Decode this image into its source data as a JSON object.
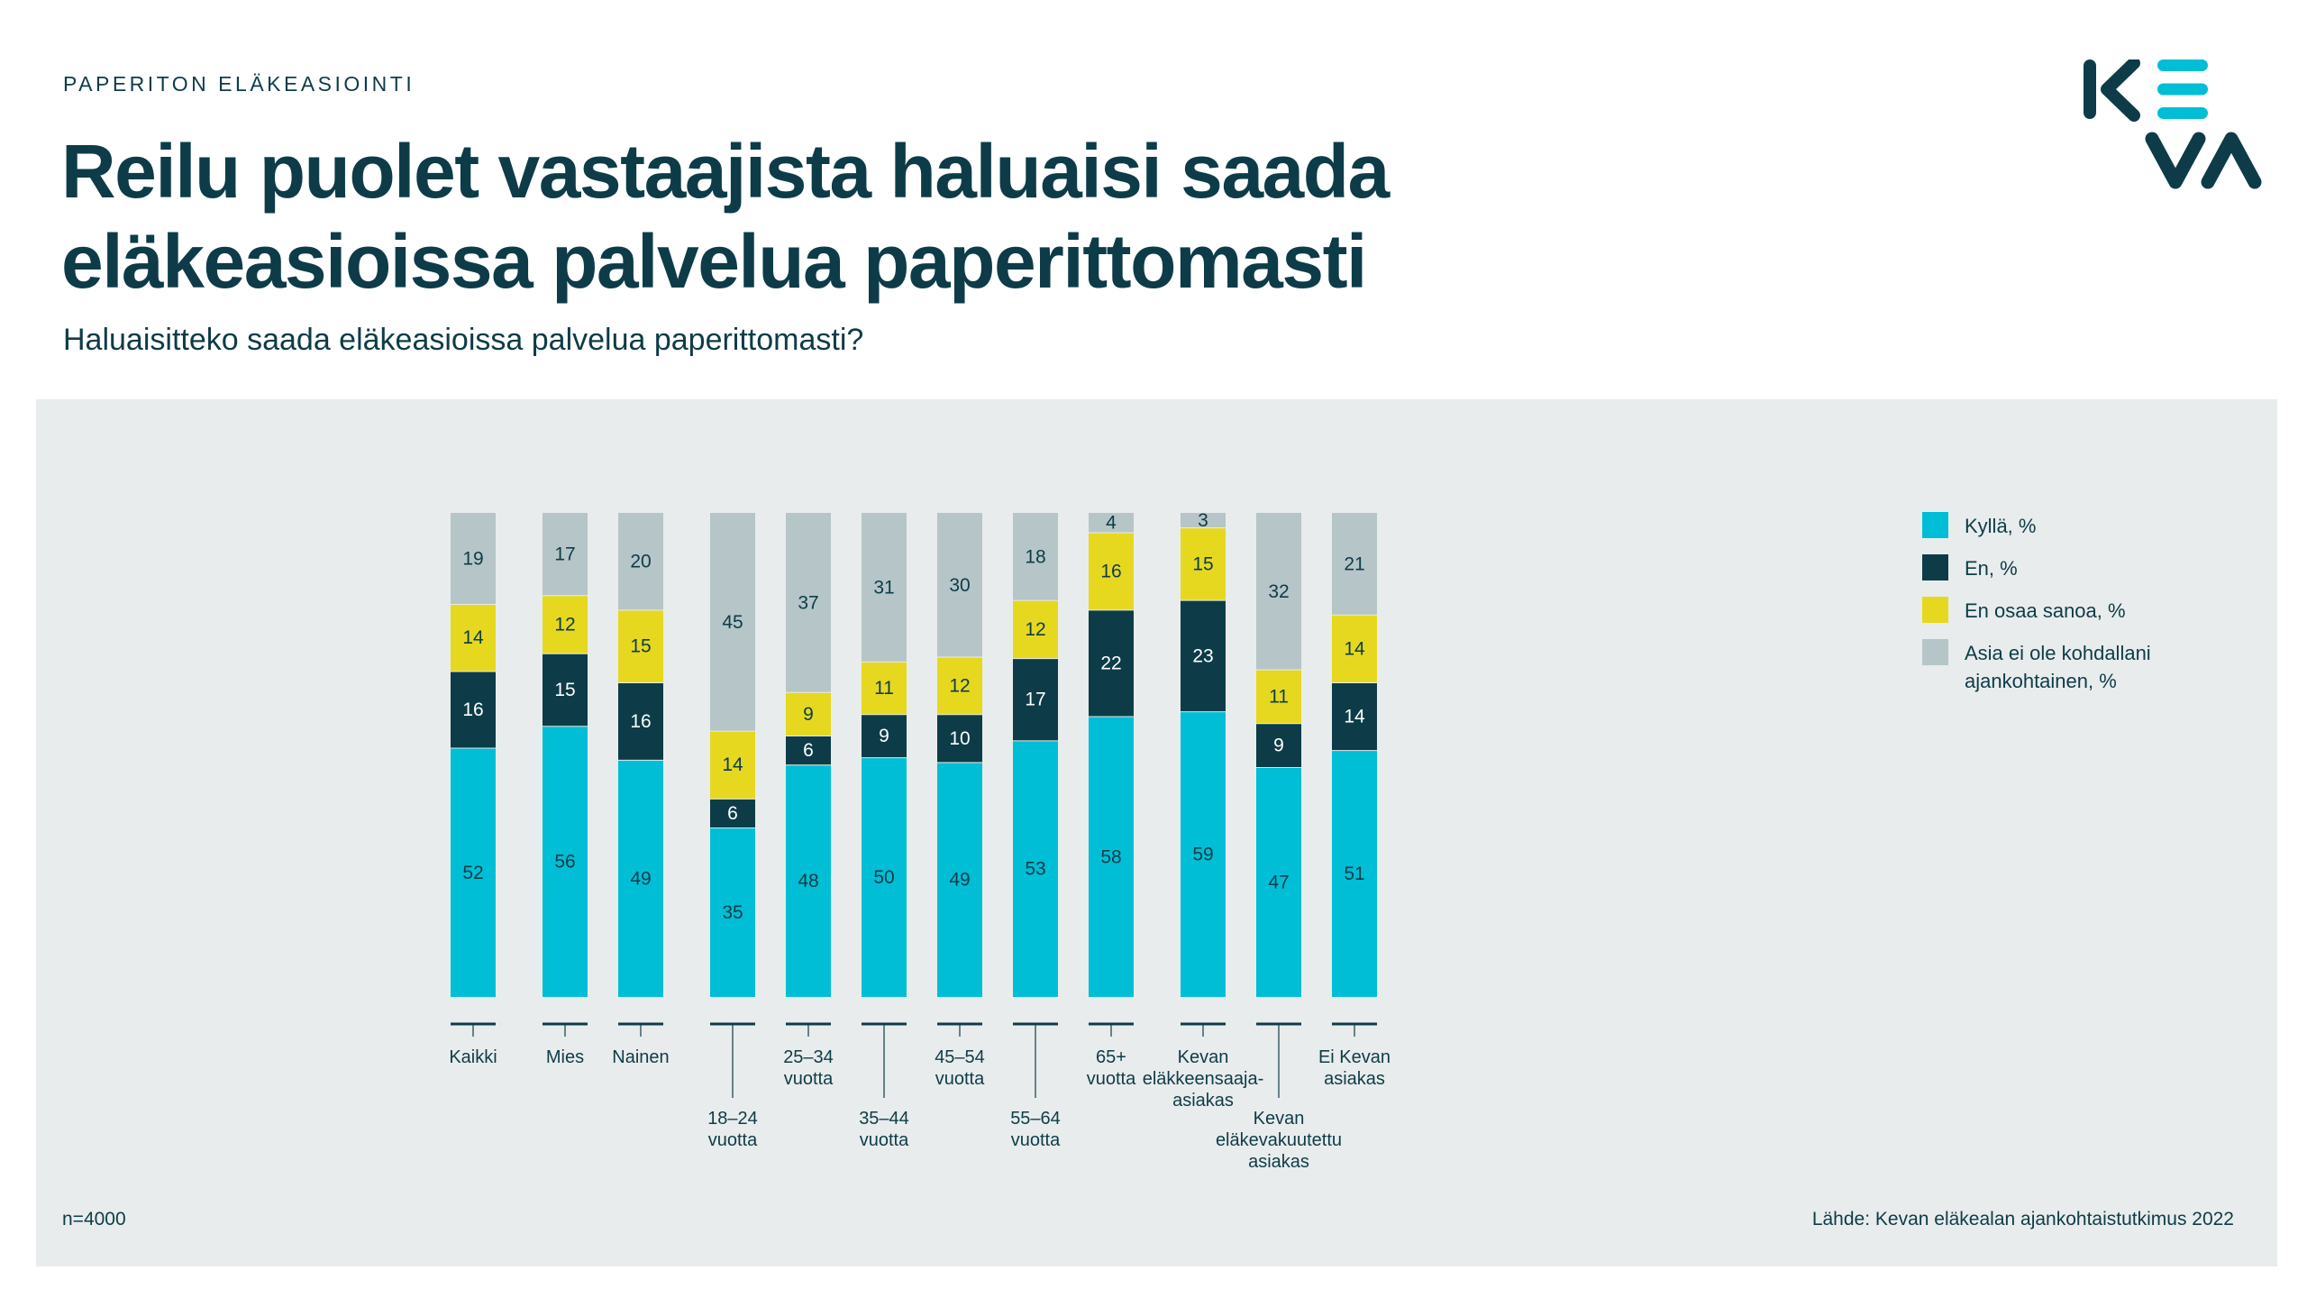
{
  "header": {
    "kicker": "PAPERITON ELÄKEASIOINTI",
    "title": "Reilu puolet vastaajista haluaisi saada eläkeasioissa palvelua paperittomasti",
    "subtitle": "Haluaisitteko saada eläkeasioissa palvelua paperittomasti?"
  },
  "logo": {
    "text": "KEVA",
    "colors": {
      "dark": "#0d3c48",
      "accent": "#00bed5"
    }
  },
  "footer": {
    "n": "n=4000",
    "source": "Lähde: Kevan eläkealan ajankohtaistutkimus 2022"
  },
  "chart_data": {
    "type": "bar",
    "stacked": true,
    "normalized": true,
    "categories": [
      "Kaikki",
      "Mies",
      "Nainen",
      "18–24 vuotta",
      "25–34 vuotta",
      "35–44 vuotta",
      "45–54 vuotta",
      "55–64 vuotta",
      "65+ vuotta",
      "Kevan eläkkeensaaja-asiakas",
      "Kevan eläkevakuutettu asiakas",
      "Ei Kevan asiakas"
    ],
    "category_label_lines": [
      [
        "Kaikki"
      ],
      [
        "Mies"
      ],
      [
        "Nainen"
      ],
      [
        "18–24",
        "vuotta"
      ],
      [
        "25–34",
        "vuotta"
      ],
      [
        "35–44",
        "vuotta"
      ],
      [
        "45–54",
        "vuotta"
      ],
      [
        "55–64",
        "vuotta"
      ],
      [
        "65+",
        "vuotta"
      ],
      [
        "Kevan",
        "eläkkeensaaja-",
        "asiakas"
      ],
      [
        "Kevan",
        "eläkevakuutettu",
        "asiakas"
      ],
      [
        "Ei Kevan",
        "asiakas"
      ]
    ],
    "groups": [
      [
        0
      ],
      [
        1,
        2
      ],
      [
        3,
        4,
        5,
        6,
        7,
        8
      ],
      [
        9,
        10,
        11
      ]
    ],
    "series": [
      {
        "name": "Kyllä, %",
        "color": "#00bed5",
        "text_color": "#0d3c48",
        "values": [
          52,
          56,
          49,
          35,
          48,
          50,
          49,
          53,
          58,
          59,
          47,
          51
        ]
      },
      {
        "name": "En, %",
        "color": "#0d3c48",
        "text_color": "#ffffff",
        "values": [
          16,
          15,
          16,
          6,
          6,
          9,
          10,
          17,
          22,
          23,
          9,
          14
        ]
      },
      {
        "name": "En osaa sanoa, %",
        "color": "#e6d81f",
        "text_color": "#0d3c48",
        "values": [
          14,
          12,
          15,
          14,
          9,
          11,
          12,
          12,
          16,
          15,
          11,
          14
        ]
      },
      {
        "name": "Asia ei ole kohdallani ajankohtainen, %",
        "color": "#b5c5c8",
        "text_color": "#0d3c48",
        "values": [
          19,
          17,
          20,
          45,
          37,
          31,
          30,
          18,
          4,
          3,
          32,
          21
        ]
      }
    ],
    "legend_position": "right",
    "grid": false
  }
}
